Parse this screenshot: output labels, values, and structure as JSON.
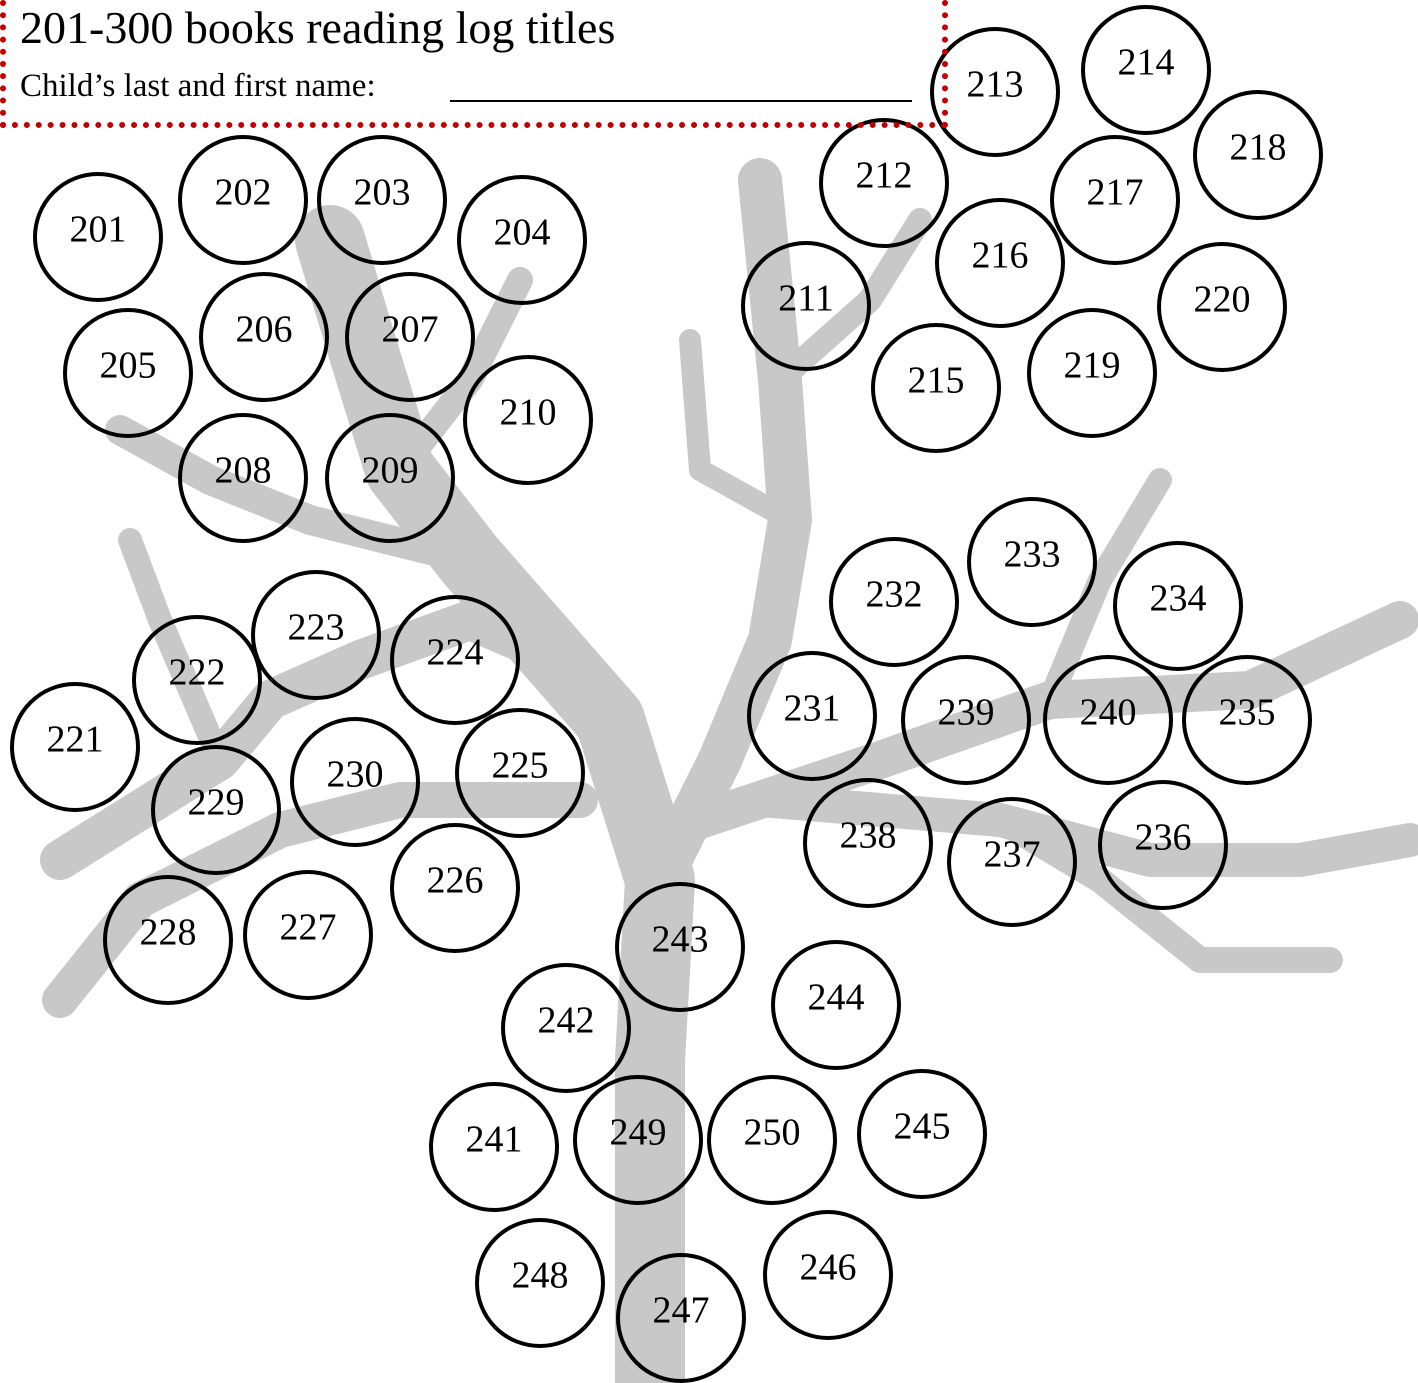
{
  "header": {
    "title": "201-300 books reading log titles",
    "name_label": "Child’s last and first name:"
  },
  "circles": [
    "201",
    "202",
    "203",
    "204",
    "205",
    "206",
    "207",
    "208",
    "209",
    "210",
    "211",
    "212",
    "213",
    "214",
    "215",
    "216",
    "217",
    "218",
    "219",
    "220",
    "221",
    "222",
    "223",
    "224",
    "225",
    "226",
    "227",
    "228",
    "229",
    "230",
    "231",
    "232",
    "233",
    "234",
    "235",
    "236",
    "237",
    "238",
    "239",
    "240",
    "241",
    "242",
    "243",
    "244",
    "245",
    "246",
    "247",
    "248",
    "249",
    "250"
  ]
}
